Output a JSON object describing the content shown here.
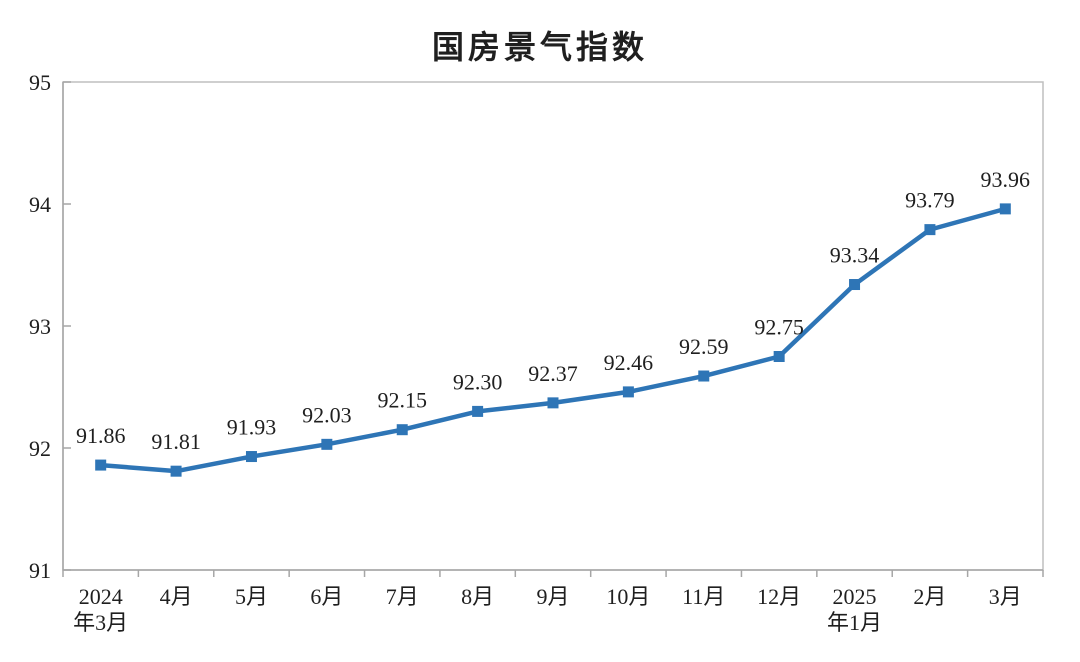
{
  "chart_data": {
    "type": "line",
    "title": "国房景气指数",
    "categories": [
      "2024\n年3月",
      "4月",
      "5月",
      "6月",
      "7月",
      "8月",
      "9月",
      "10月",
      "11月",
      "12月",
      "2025\n年1月",
      "2月",
      "3月"
    ],
    "values": [
      91.86,
      91.81,
      91.93,
      92.03,
      92.15,
      92.3,
      92.37,
      92.46,
      92.59,
      92.75,
      93.34,
      93.79,
      93.96
    ],
    "point_labels": [
      "91.86",
      "91.81",
      "91.93",
      "92.03",
      "92.15",
      "92.30",
      "92.37",
      "92.46",
      "92.59",
      "92.75",
      "93.34",
      "93.79",
      "93.96"
    ],
    "y_ticks": [
      "91",
      "92",
      "93",
      "94",
      "95"
    ],
    "ylim": [
      91,
      95
    ],
    "xlabel": "",
    "ylabel": "",
    "grid": false,
    "legend": "none",
    "series_name": "国房景气指数",
    "line_color": "#2E75B6",
    "marker_shape": "square",
    "axis_color": "#A6A6A6",
    "border_color": "#BFBFBF",
    "label_color": "#1f1f1f"
  }
}
